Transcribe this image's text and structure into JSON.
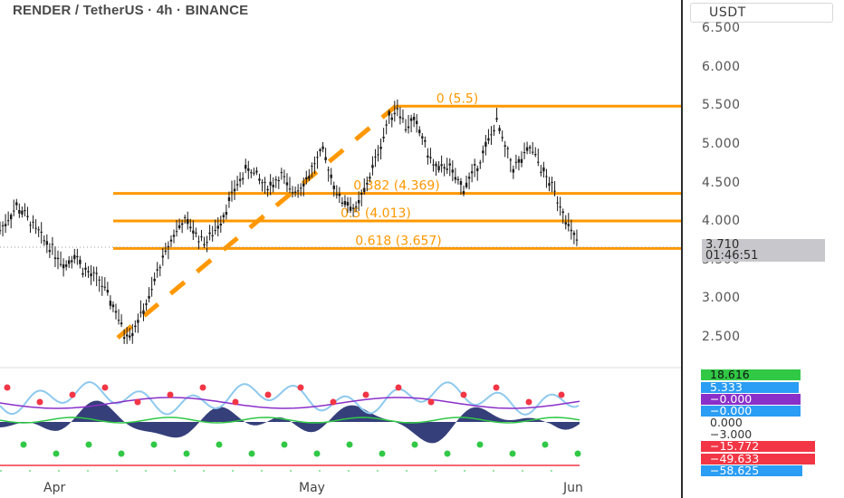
{
  "header": {
    "title": "RENDER / TetherUS · 4h · BINANCE"
  },
  "axis": {
    "currency": "USDT",
    "last_price": "3.710",
    "countdown": "01:46:51"
  },
  "chart_data": {
    "type": "line",
    "title": "RENDER / TetherUS · 4h · BINANCE",
    "ylim": [
      2.3,
      6.8
    ],
    "y_ticks": [
      "6.500",
      "6.000",
      "5.500",
      "5.000",
      "4.500",
      "4.000",
      "3.500",
      "3.000",
      "2.500"
    ],
    "x_ticks": [
      "Apr",
      "May",
      "Jun"
    ],
    "series": [
      {
        "values": [
          3.9,
          4.05,
          4.2,
          4.1,
          3.95,
          3.8,
          3.7,
          3.55,
          3.45,
          3.6,
          3.4,
          3.3,
          3.25,
          3.05,
          2.85,
          2.55,
          2.6,
          2.8,
          3.0,
          3.35,
          3.6,
          3.85,
          4.0,
          3.95,
          3.8,
          3.75,
          3.9,
          4.1,
          4.35,
          4.55,
          4.7,
          4.6,
          4.45,
          4.5,
          4.6,
          4.4,
          4.45,
          4.55,
          4.75,
          4.9,
          4.6,
          4.3,
          4.25,
          4.15,
          4.4,
          4.7,
          5.0,
          5.35,
          5.5,
          5.25,
          5.3,
          5.1,
          4.8,
          4.65,
          4.75,
          4.55,
          4.45,
          4.6,
          4.8,
          5.05,
          5.3,
          4.95,
          4.7,
          4.8,
          4.95,
          4.8,
          4.55,
          4.4,
          4.15,
          3.85,
          3.71
        ]
      }
    ],
    "fib_levels": [
      {
        "label": "0.618 (3.657)",
        "value": 3.657
      },
      {
        "label": "0.5 (4.013)",
        "value": 4.013
      },
      {
        "label": "0.382 (4.369)",
        "value": 4.369
      },
      {
        "label": "0 (5.5)",
        "value": 5.5
      }
    ],
    "trend": {
      "start": 2.5,
      "end": 5.5
    }
  },
  "indicators": [
    {
      "text": "18.616",
      "bg": "#31c846",
      "fg": "#111111"
    },
    {
      "text": "5.333",
      "bg": "#2a9df4",
      "fg": "#ffffff"
    },
    {
      "text": "−0.000",
      "bg": "#8b2fc9",
      "fg": "#ffffff"
    },
    {
      "text": "−0.000",
      "bg": "#2a9df4",
      "fg": "#ffffff"
    },
    {
      "text": "0.000",
      "bg": "#ffffff",
      "fg": "#333333"
    },
    {
      "text": "−3.000",
      "bg": "#ffffff",
      "fg": "#333333"
    },
    {
      "text": "−15.772",
      "bg": "#f23645",
      "fg": "#ffffff"
    },
    {
      "text": "−49.633",
      "bg": "#f23645",
      "fg": "#ffffff"
    },
    {
      "text": "−58.625",
      "bg": "#2a9df4",
      "fg": "#ffffff"
    }
  ],
  "colors": {
    "fib": "#ff9800",
    "candles": "#1a1a1a",
    "osc_fill": "#1f2a6b",
    "osc_light": "#8ec9ee",
    "osc_purple": "#8b2fc9"
  }
}
